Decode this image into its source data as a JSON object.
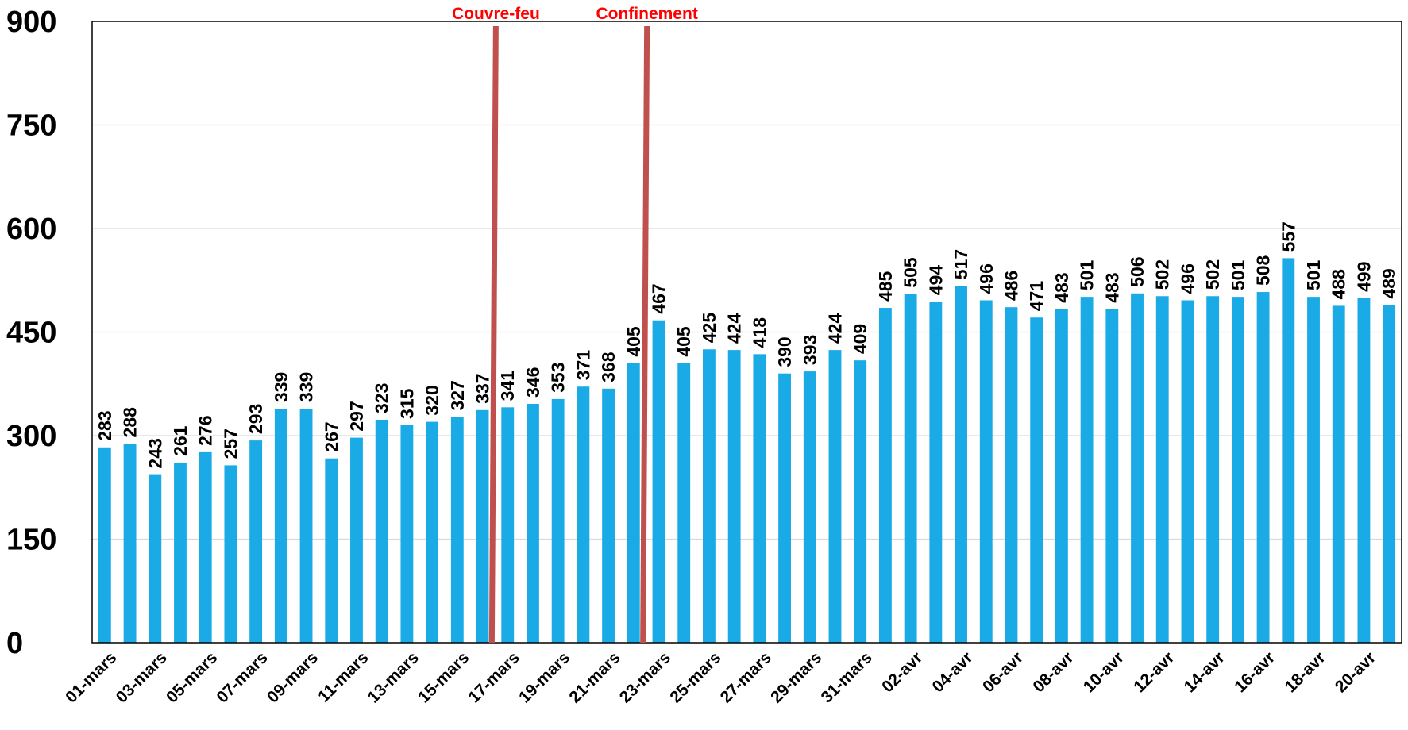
{
  "chart_data": {
    "type": "bar",
    "categories": [
      "01-mars",
      "02-mars",
      "03-mars",
      "04-mars",
      "05-mars",
      "06-mars",
      "07-mars",
      "08-mars",
      "09-mars",
      "10-mars",
      "11-mars",
      "12-mars",
      "13-mars",
      "14-mars",
      "15-mars",
      "16-mars",
      "17-mars",
      "18-mars",
      "19-mars",
      "20-mars",
      "21-mars",
      "22-mars",
      "23-mars",
      "24-mars",
      "25-mars",
      "26-mars",
      "27-mars",
      "28-mars",
      "29-mars",
      "30-mars",
      "31-mars",
      "01-avr",
      "02-avr",
      "03-avr",
      "04-avr",
      "05-avr",
      "06-avr",
      "07-avr",
      "08-avr",
      "09-avr",
      "10-avr",
      "11-avr",
      "12-avr",
      "13-avr",
      "14-avr",
      "15-avr",
      "16-avr",
      "17-avr",
      "18-avr",
      "19-avr",
      "20-avr",
      "21-avr"
    ],
    "x_tick_labels": [
      "01-mars",
      "03-mars",
      "05-mars",
      "07-mars",
      "09-mars",
      "11-mars",
      "13-mars",
      "15-mars",
      "17-mars",
      "19-mars",
      "21-mars",
      "23-mars",
      "25-mars",
      "27-mars",
      "29-mars",
      "31-mars",
      "02-avr",
      "04-avr",
      "06-avr",
      "08-avr",
      "10-avr",
      "12-avr",
      "14-avr",
      "16-avr",
      "18-avr",
      "20-avr"
    ],
    "values": [
      283,
      288,
      243,
      261,
      276,
      257,
      293,
      339,
      339,
      267,
      297,
      323,
      315,
      320,
      327,
      337,
      341,
      346,
      353,
      371,
      368,
      405,
      467,
      405,
      425,
      424,
      418,
      390,
      393,
      424,
      409,
      485,
      505,
      494,
      517,
      496,
      486,
      471,
      483,
      501,
      483,
      506,
      502,
      496,
      502,
      501,
      508,
      557,
      501,
      488,
      499,
      489
    ],
    "ylim": [
      0,
      900
    ],
    "yticks": [
      0,
      150,
      300,
      450,
      600,
      750,
      900
    ],
    "grid": true,
    "bar_color": "#1AABE6",
    "event_markers": [
      {
        "label": "Couvre-feu",
        "after_category": "16-mars",
        "color": "#C0504D",
        "label_color": "#FF0000"
      },
      {
        "label": "Confinement",
        "after_category": "22-mars",
        "color": "#C0504D",
        "label_color": "#FF0000"
      }
    ],
    "title": "",
    "xlabel": "",
    "ylabel": ""
  }
}
